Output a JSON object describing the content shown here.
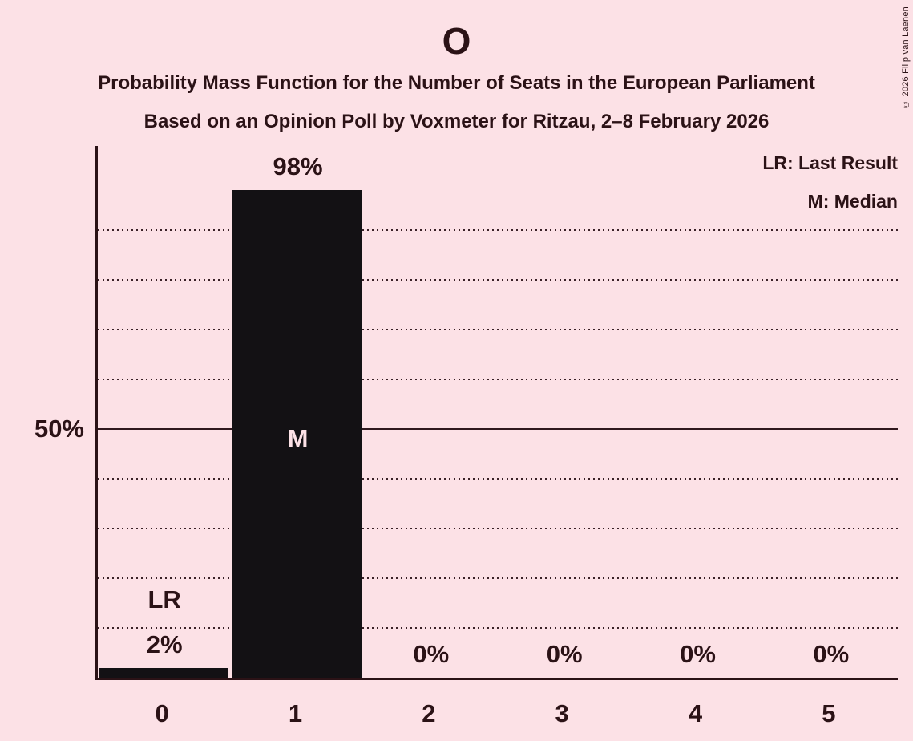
{
  "title": "O",
  "subtitle1": "Probability Mass Function for the Number of Seats in the European Parliament",
  "subtitle2": "Based on an Opinion Poll by Voxmeter for Ritzau, 2–8 February 2026",
  "copyright": "© 2026 Filip van Laenen",
  "legend": {
    "lr": "LR: Last Result",
    "m": "M: Median"
  },
  "colors": {
    "background": "#fce1e6",
    "bar": "#131114",
    "text": "#2b1216",
    "grid": "#3a2127",
    "solid_line": "#30181e"
  },
  "chart_data": {
    "type": "bar",
    "title": "O",
    "categories": [
      "0",
      "1",
      "2",
      "3",
      "4",
      "5"
    ],
    "values": [
      2,
      98,
      0,
      0,
      0,
      0
    ],
    "value_labels": [
      "2%",
      "98%",
      "0%",
      "0%",
      "0%",
      "0%"
    ],
    "ylabel": "",
    "xlabel": "",
    "ylim": [
      0,
      107
    ],
    "y_axis": {
      "tick_label": "50%",
      "tick_value": 50,
      "gridlines_pct": [
        10,
        20,
        30,
        40,
        60,
        70,
        80,
        90
      ],
      "solid_gridline_pct": 50,
      "grid_style": "dotted"
    },
    "legend_position": "top-right",
    "annotations": [
      {
        "slot": 0,
        "text": "LR",
        "placement": "above_value_label"
      },
      {
        "slot": 1,
        "text": "M",
        "placement": "inside_bar",
        "center_pct": 48
      }
    ]
  }
}
